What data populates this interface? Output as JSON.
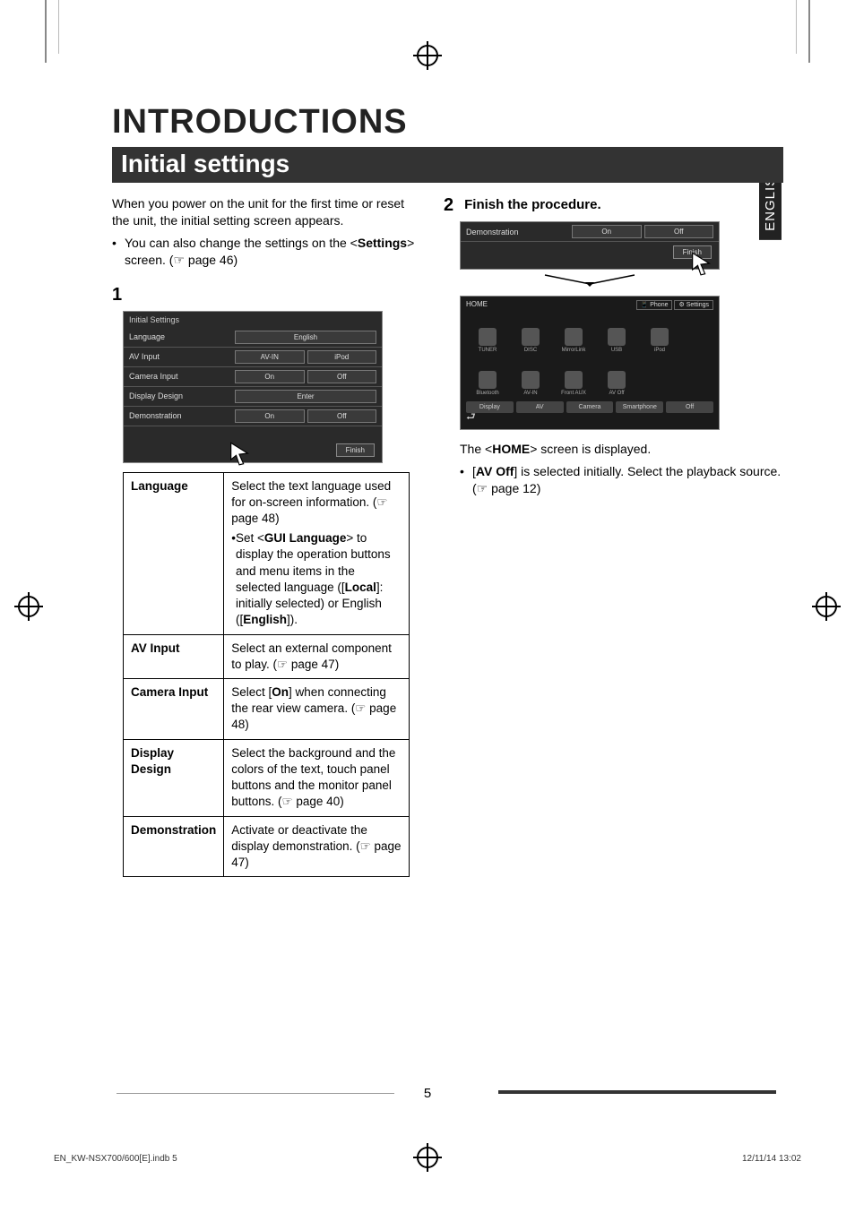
{
  "side_tab": "ENGLISH",
  "title": "INTRODUCTIONS",
  "section": "Initial settings",
  "intro": "When you power on the unit for the first time or reset the unit, the initial setting screen appears.",
  "intro_bullet_pre": "You can also change the settings on the <",
  "intro_bullet_bold": "Settings",
  "intro_bullet_post": "> screen. (☞ page 46)",
  "step1_num": "1",
  "step2_num": "2",
  "step2_label": "Finish the procedure.",
  "screenshot1": {
    "header": "Initial Settings",
    "rows": [
      {
        "label": "Language",
        "opts": [
          "English"
        ],
        "full": true
      },
      {
        "label": "AV Input",
        "opts": [
          "AV-IN",
          "iPod"
        ]
      },
      {
        "label": "Camera Input",
        "opts": [
          "On",
          "Off"
        ]
      },
      {
        "label": "Display Design",
        "opts": [
          "Enter"
        ],
        "full": true
      },
      {
        "label": "Demonstration",
        "opts": [
          "On",
          "Off"
        ]
      }
    ],
    "finish": "Finish"
  },
  "table": [
    {
      "k": "Language",
      "v_parts": [
        "Select the text language used for on-screen information. (☞ page 48)",
        "• Set <",
        {
          "b": "GUI Language"
        },
        "> to display the operation buttons and menu items in the selected language ([",
        {
          "b": "Local"
        },
        "]: initially selected) or English ([",
        {
          "b": "English"
        },
        "])."
      ]
    },
    {
      "k": "AV Input",
      "v": "Select an external component to play. (☞ page 47)"
    },
    {
      "k": "Camera Input",
      "v_parts": [
        "Select [",
        {
          "b": "On"
        },
        "] when connecting the rear view camera. (☞ page 48)"
      ]
    },
    {
      "k": "Display Design",
      "v": "Select the background and the colors of the text, touch panel buttons and the monitor panel buttons. (☞ page 40)"
    },
    {
      "k": "Demonstration",
      "v": "Activate or deactivate the display demonstration. (☞ page 47)"
    }
  ],
  "ss2_top": {
    "label": "Demonstration",
    "opts": [
      "On",
      "Off"
    ],
    "finish": "Finish"
  },
  "home": {
    "title": "HOME",
    "topright": [
      "📱 Phone",
      "⚙ Settings"
    ],
    "tiles": [
      "TUNER",
      "DISC",
      "MirrorLink\nMHL\nSmartphone",
      "USB",
      "iPod",
      "Bluetooth",
      "AV-IN",
      "Front AUX",
      "AV Off"
    ],
    "bottom": [
      "Display",
      "AV",
      "Camera",
      "Smartphone",
      "Off"
    ]
  },
  "after_home_pre": "The <",
  "after_home_bold": "HOME",
  "after_home_post": "> screen is displayed.",
  "after_home_bullet_pre": "[",
  "after_home_bullet_bold": "AV Off",
  "after_home_bullet_post": "] is selected initially. Select the playback source. (☞ page 12)",
  "page_number": "5",
  "footer_left": "EN_KW-NSX700/600[E].indb   5",
  "footer_right": "12/11/14   13:02",
  "colors": {
    "bar_bg": "#333333",
    "screenshot_bg": "#2a2a2a",
    "home_bg": "#1a1a1a"
  }
}
